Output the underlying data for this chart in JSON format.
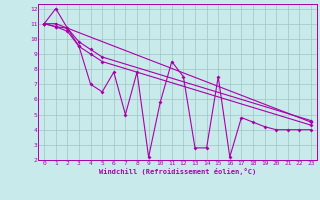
{
  "background_color": "#c8eaea",
  "grid_color": "#a0c4c4",
  "line_color": "#aa00aa",
  "xlabel": "Windchill (Refroidissement éolien,°C)",
  "xlim": [
    -0.5,
    23.5
  ],
  "ylim": [
    2,
    12.3
  ],
  "yticks": [
    2,
    3,
    4,
    5,
    6,
    7,
    8,
    9,
    10,
    11,
    12
  ],
  "xticks": [
    0,
    1,
    2,
    3,
    4,
    5,
    6,
    7,
    8,
    9,
    10,
    11,
    12,
    13,
    14,
    15,
    16,
    17,
    18,
    19,
    20,
    21,
    22,
    23
  ],
  "series": [
    {
      "x": [
        0,
        1,
        2,
        3,
        4,
        5,
        6,
        7,
        8,
        9,
        10,
        11,
        12,
        13,
        14,
        15,
        16,
        17,
        18,
        19,
        20,
        21,
        22,
        23
      ],
      "y": [
        11.0,
        12.0,
        10.7,
        9.5,
        7.0,
        6.5,
        7.8,
        5.0,
        7.8,
        2.2,
        5.8,
        8.5,
        7.5,
        2.8,
        2.8,
        7.5,
        2.2,
        4.8,
        4.5,
        4.2,
        4.0,
        4.0,
        4.0,
        4.0
      ]
    },
    {
      "x": [
        0,
        1,
        2,
        3,
        4,
        5,
        23
      ],
      "y": [
        11.0,
        10.8,
        10.5,
        9.5,
        9.0,
        8.5,
        4.3
      ]
    },
    {
      "x": [
        0,
        1,
        2,
        3,
        4,
        5,
        23
      ],
      "y": [
        11.0,
        10.8,
        10.7,
        9.8,
        9.3,
        8.8,
        4.6
      ]
    },
    {
      "x": [
        0,
        1,
        23
      ],
      "y": [
        11.0,
        11.0,
        4.5
      ]
    }
  ]
}
